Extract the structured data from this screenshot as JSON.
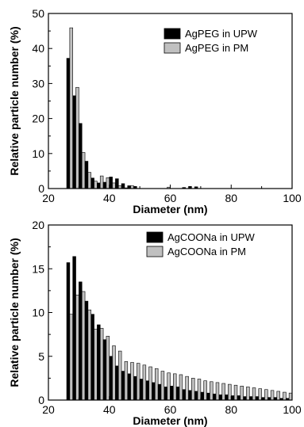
{
  "chart_data": [
    {
      "type": "bar",
      "xlabel": "Diameter (nm)",
      "ylabel": "Relative particle number (%)",
      "xlim": [
        20,
        100
      ],
      "ylim": [
        0,
        50
      ],
      "xticks": [
        20,
        40,
        60,
        80,
        100
      ],
      "yticks": [
        0,
        10,
        20,
        30,
        40,
        50
      ],
      "bin_width": 2,
      "legend_position": "top-right",
      "bin_starts": [
        26,
        28,
        30,
        32,
        34,
        36,
        38,
        40,
        42,
        44,
        46,
        48,
        50,
        52,
        54,
        56,
        58,
        60,
        62,
        64,
        66,
        68
      ],
      "series": [
        {
          "name": "AgPEG in UPW",
          "color": "#000000",
          "values": [
            37.2,
            26.5,
            18.6,
            7.8,
            3.0,
            1.6,
            1.8,
            3.3,
            2.8,
            1.4,
            0.8,
            0.6,
            0,
            0,
            0,
            0,
            0,
            0,
            0,
            0.3,
            0.6,
            0.5
          ]
        },
        {
          "name": "AgPEG in PM",
          "color": "#c0c0c0",
          "values": [
            45.9,
            28.9,
            10.3,
            4.6,
            2.1,
            3.6,
            3.1,
            1.6,
            0.8,
            0.2,
            0.8,
            0,
            0,
            0,
            0,
            0,
            0.4,
            0,
            0,
            0,
            0,
            0
          ]
        }
      ]
    },
    {
      "type": "bar",
      "xlabel": "Diameter (nm)",
      "ylabel": "Relative particle number (%)",
      "xlim": [
        20,
        100
      ],
      "ylim": [
        0,
        20
      ],
      "xticks": [
        20,
        40,
        60,
        80,
        100
      ],
      "yticks": [
        0,
        5,
        10,
        15,
        20
      ],
      "bin_width": 2,
      "legend_position": "top-right",
      "bin_starts": [
        26,
        28,
        30,
        32,
        34,
        36,
        38,
        40,
        42,
        44,
        46,
        48,
        50,
        52,
        54,
        56,
        58,
        60,
        62,
        64,
        66,
        68,
        70,
        72,
        74,
        76,
        78,
        80,
        82,
        84,
        86,
        88,
        90,
        92,
        94,
        96,
        98
      ],
      "series": [
        {
          "name": "AgCOONa in UPW",
          "color": "#000000",
          "values": [
            15.7,
            16.4,
            13.5,
            11.3,
            9.8,
            8.6,
            6.9,
            5.0,
            3.9,
            3.3,
            3.0,
            2.7,
            2.4,
            2.2,
            2.0,
            1.8,
            1.5,
            1.6,
            1.5,
            1.2,
            1.1,
            1.0,
            0.9,
            0.8,
            0.7,
            0.6,
            0.6,
            0.5,
            0.5,
            0.4,
            0.4,
            0.4,
            0.3,
            0.3,
            0.3,
            0.2,
            0.2
          ]
        },
        {
          "name": "AgCOONa in PM",
          "color": "#c0c0c0",
          "values": [
            9.8,
            12.0,
            12.4,
            10.3,
            8.1,
            8.2,
            7.3,
            6.2,
            5.6,
            4.4,
            4.3,
            4.2,
            4.0,
            3.8,
            3.6,
            3.3,
            3.1,
            3.0,
            2.9,
            2.7,
            2.5,
            2.4,
            2.2,
            2.1,
            2.0,
            1.9,
            1.8,
            1.7,
            1.6,
            1.5,
            1.4,
            1.3,
            1.2,
            1.1,
            1.0,
            0.9,
            0.8
          ]
        }
      ]
    }
  ]
}
